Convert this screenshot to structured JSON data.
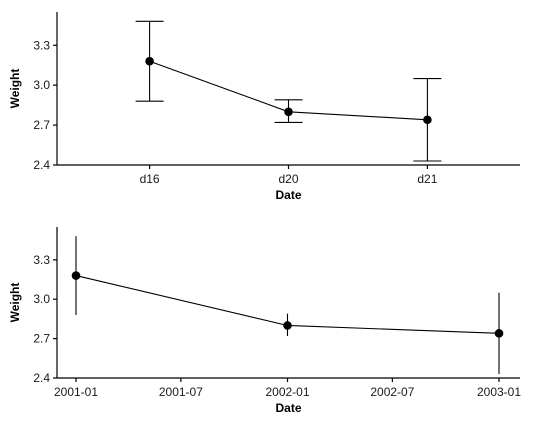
{
  "chart_data": [
    {
      "type": "line",
      "x_axis_type": "categorical",
      "categories": [
        "d16",
        "d20",
        "d21"
      ],
      "series": [
        {
          "values": [
            3.18,
            2.8,
            2.74
          ],
          "error_low": [
            2.88,
            2.72,
            2.43
          ],
          "error_high": [
            3.48,
            2.89,
            3.05
          ]
        }
      ],
      "error_bar_style": "capped",
      "xlabel": "Date",
      "ylabel": "Weight",
      "ylim": [
        2.4,
        3.55
      ],
      "yticks": [
        2.4,
        2.7,
        3.0,
        3.3
      ],
      "ytick_labels": [
        "2.4",
        "2.7",
        "3.0",
        "3.3"
      ],
      "grid": false,
      "colors": {
        "line": "#000000",
        "point": "#000000",
        "axis": "#000000"
      }
    },
    {
      "type": "line",
      "x_axis_type": "date",
      "x": [
        "2001-01-01",
        "2002-01-01",
        "2003-01-01"
      ],
      "series": [
        {
          "values": [
            3.18,
            2.8,
            2.74
          ],
          "error_low": [
            2.88,
            2.72,
            2.43
          ],
          "error_high": [
            3.48,
            2.89,
            3.05
          ]
        }
      ],
      "error_bar_style": "line",
      "xticks": [
        "2001-01-01",
        "2001-07-01",
        "2002-01-01",
        "2002-07-01",
        "2003-01-01"
      ],
      "xtick_labels": [
        "2001-01",
        "2001-07",
        "2002-01",
        "2002-07",
        "2003-01"
      ],
      "xlabel": "Date",
      "ylabel": "Weight",
      "ylim": [
        2.4,
        3.55
      ],
      "yticks": [
        2.4,
        2.7,
        3.0,
        3.3
      ],
      "ytick_labels": [
        "2.4",
        "2.7",
        "3.0",
        "3.3"
      ],
      "grid": false,
      "colors": {
        "line": "#000000",
        "point": "#000000",
        "axis": "#000000"
      }
    }
  ]
}
